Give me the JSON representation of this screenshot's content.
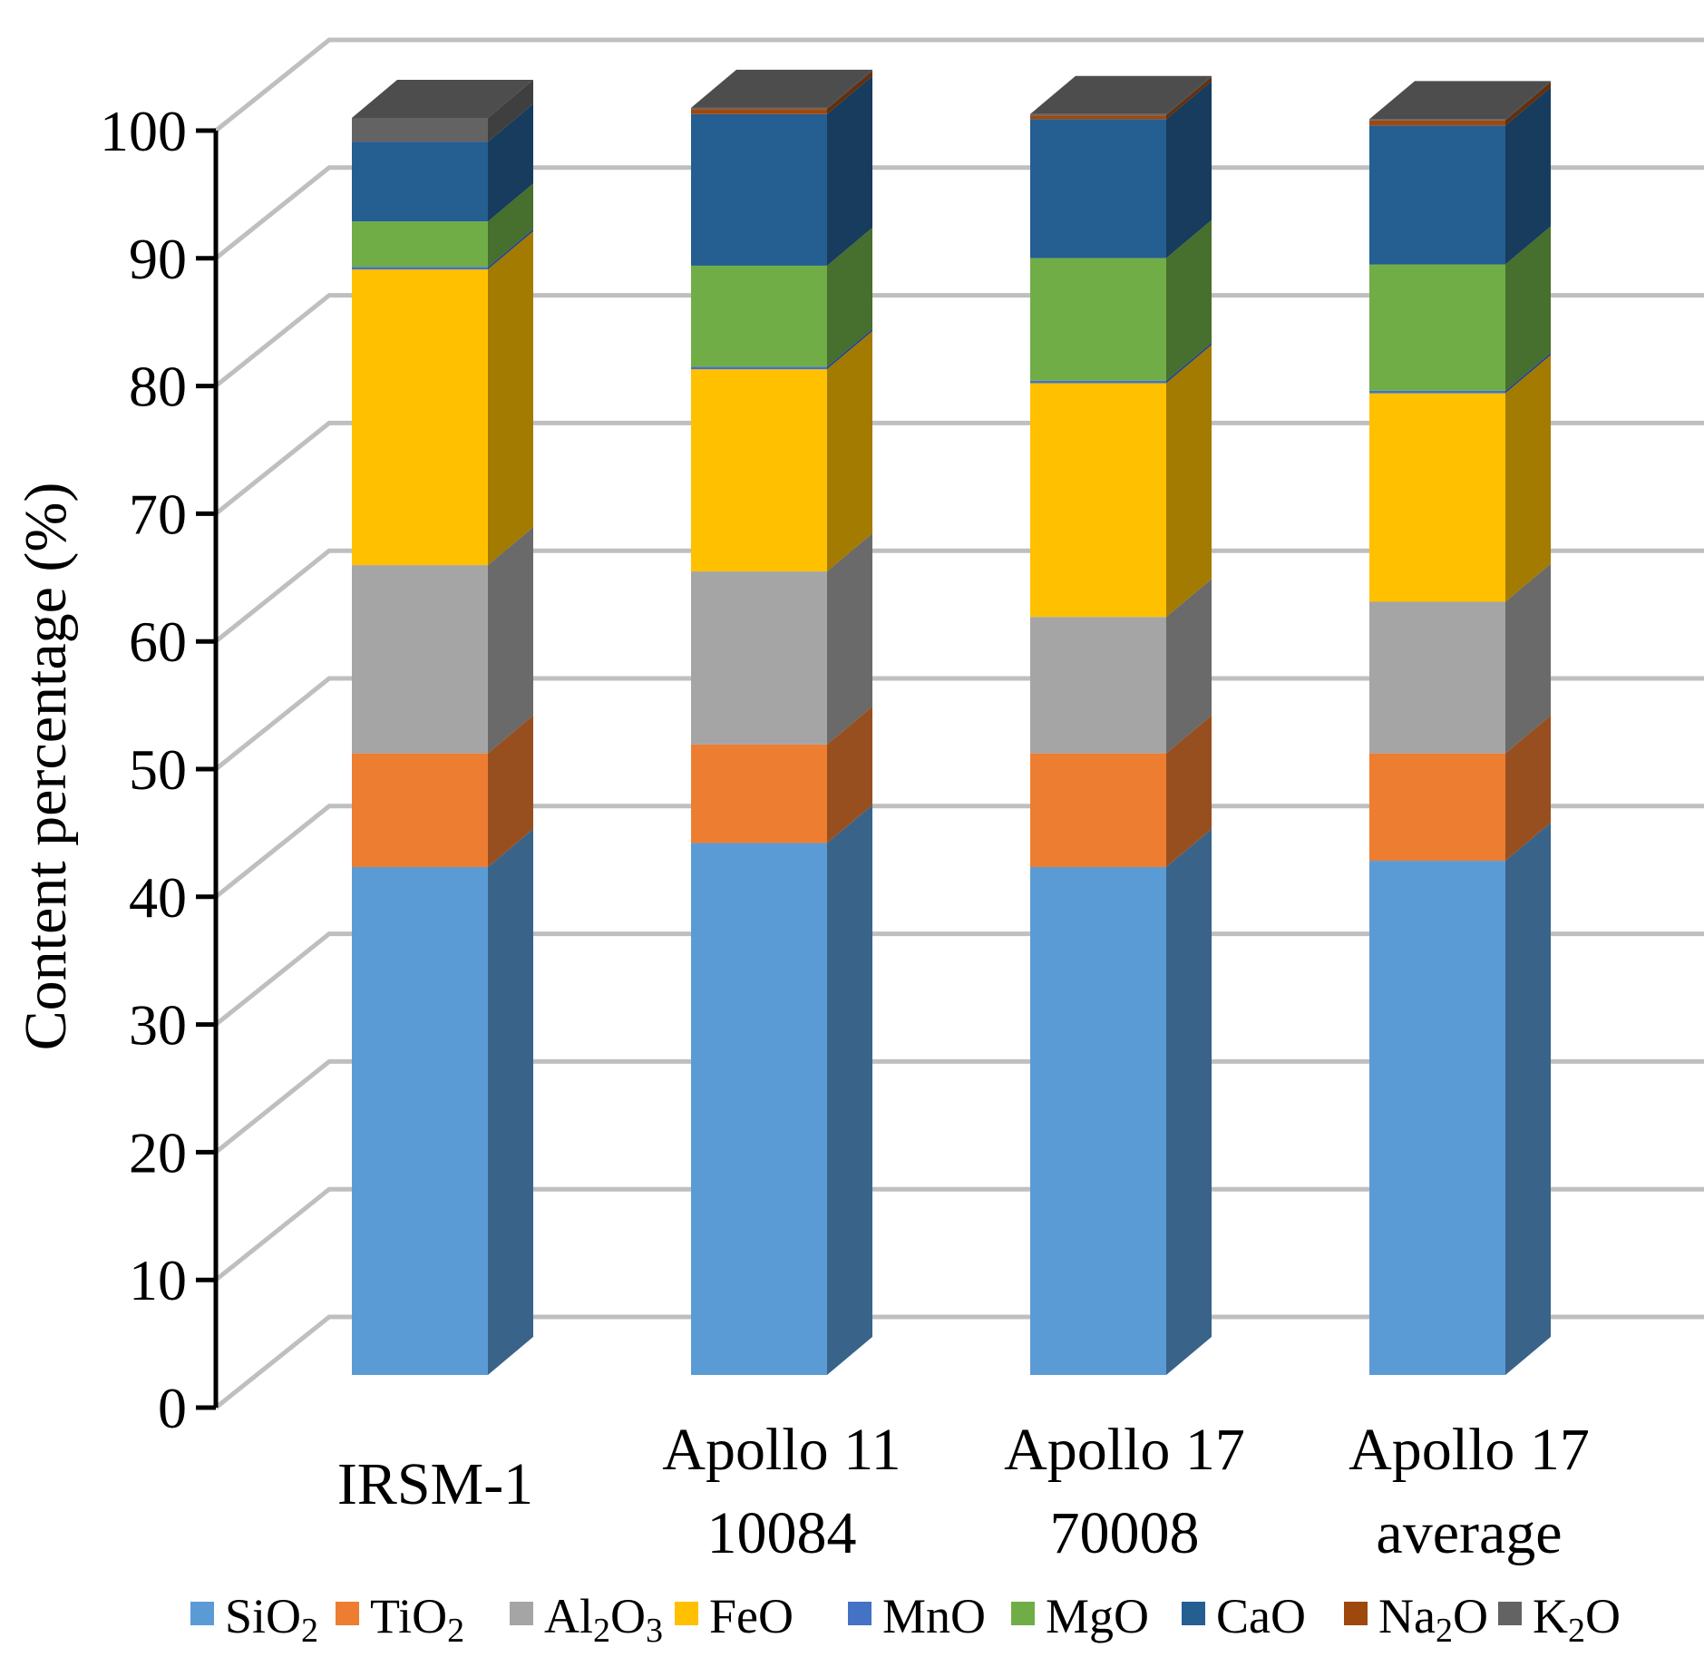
{
  "chart_data": {
    "type": "bar",
    "stacked": true,
    "three_d": true,
    "ylabel": "Content percentage (%)",
    "xlabel": "",
    "ylim": [
      0,
      100
    ],
    "yticks": [
      0,
      10,
      20,
      30,
      40,
      50,
      60,
      70,
      80,
      90,
      100
    ],
    "grid": true,
    "legend_position": "bottom",
    "categories": [
      [
        "IRSM-1"
      ],
      [
        "Apollo 11",
        "10084"
      ],
      [
        "Apollo 17",
        "70008"
      ],
      [
        "Apollo 17",
        "average"
      ]
    ],
    "series": [
      {
        "name": "SiO",
        "sub": "2",
        "name_tail": "",
        "sub2": "",
        "color": "#5B9BD5",
        "side": "#3A6389",
        "values": [
          40.2,
          42.1,
          40.2,
          40.7
        ]
      },
      {
        "name": "TiO",
        "sub": "2",
        "name_tail": "",
        "sub2": "",
        "color": "#ED7D31",
        "side": "#984F1F",
        "values": [
          9.0,
          7.8,
          9.0,
          8.5
        ]
      },
      {
        "name": "Al",
        "sub": "2",
        "name_tail": "O",
        "sub2": "3",
        "color": "#A5A5A5",
        "side": "#6A6A6A",
        "values": [
          14.9,
          13.7,
          10.8,
          12.0
        ]
      },
      {
        "name": "FeO",
        "sub": "",
        "name_tail": "",
        "sub2": "",
        "color": "#FFC000",
        "side": "#A37B00",
        "values": [
          23.4,
          16.0,
          18.5,
          16.5
        ]
      },
      {
        "name": "MnO",
        "sub": "",
        "name_tail": "",
        "sub2": "",
        "color": "#4472C4",
        "side": "#2B497E",
        "values": [
          0.2,
          0.2,
          0.2,
          0.2
        ]
      },
      {
        "name": "MgO",
        "sub": "",
        "name_tail": "",
        "sub2": "",
        "color": "#70AD47",
        "side": "#476F2D",
        "values": [
          3.6,
          8.0,
          9.7,
          10.0
        ]
      },
      {
        "name": "CaO",
        "sub": "",
        "name_tail": "",
        "sub2": "",
        "color": "#255E91",
        "side": "#173C5D",
        "values": [
          6.3,
          12.0,
          11.0,
          11.0
        ]
      },
      {
        "name": "Na",
        "sub": "2",
        "name_tail": "O",
        "sub2": "",
        "color": "#9E480E",
        "side": "#652E09",
        "values": [
          0.0,
          0.4,
          0.3,
          0.4
        ]
      },
      {
        "name": "K",
        "sub": "2",
        "name_tail": "O",
        "sub2": "",
        "color": "#636363",
        "side": "#3F3F3F",
        "values": [
          1.9,
          0.1,
          0.1,
          0.1
        ]
      }
    ]
  }
}
